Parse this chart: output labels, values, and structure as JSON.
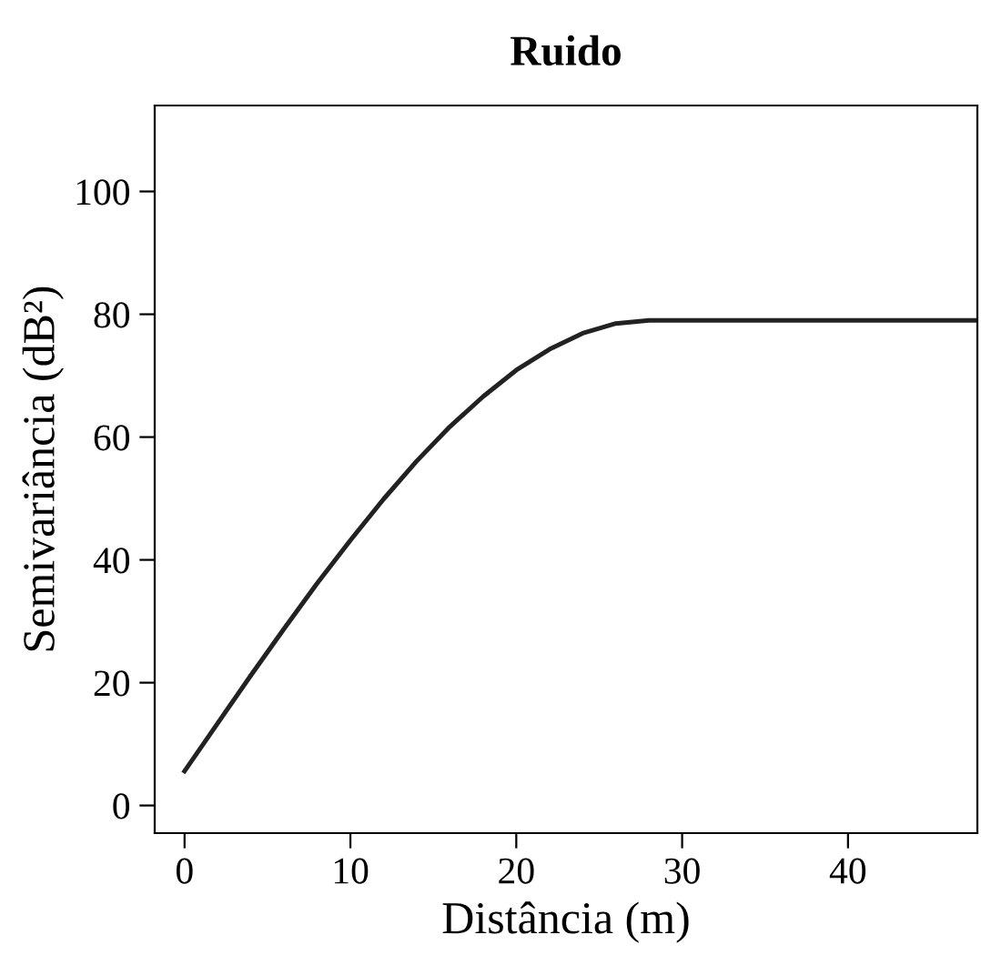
{
  "chart_data": {
    "type": "line",
    "title": "Ruido",
    "xlabel": "Distância (m)",
    "ylabel": "Semivariância (dB²)",
    "x": [
      0,
      2,
      4,
      6,
      8,
      10,
      12,
      14,
      16,
      18,
      20,
      22,
      24,
      26,
      28,
      47.8
    ],
    "series": [
      {
        "color": "#222222",
        "values": [
          5.6,
          13.4,
          21.2,
          28.8,
          36.2,
          43.2,
          49.9,
          56.1,
          61.7,
          66.6,
          70.9,
          74.3,
          76.9,
          78.5,
          79,
          79
        ]
      }
    ],
    "xlim": [
      -1.8,
      47.8
    ],
    "ylim": [
      -4.5,
      114
    ],
    "xticks": [
      0,
      10,
      20,
      30,
      40
    ],
    "yticks": [
      0,
      20,
      40,
      60,
      80,
      100
    ],
    "grid": false,
    "legend": false,
    "marker": "none",
    "line_style": "solid"
  }
}
